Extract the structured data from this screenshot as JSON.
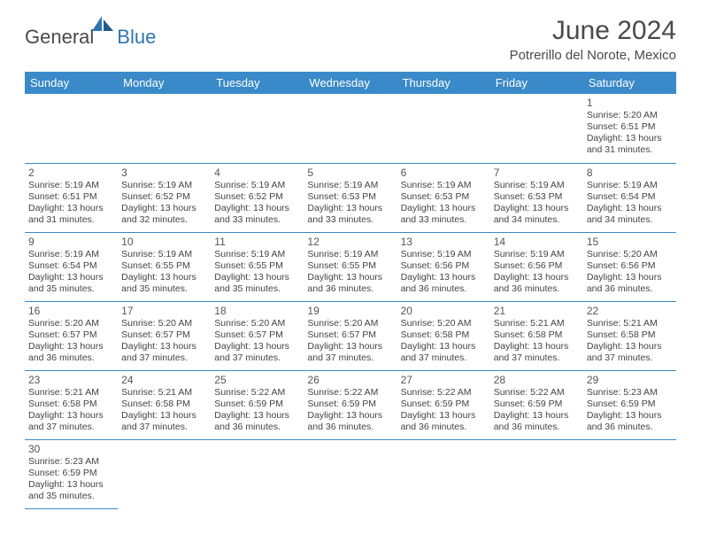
{
  "logo": {
    "general": "General",
    "blue": "Blue"
  },
  "title": "June 2024",
  "location": "Potrerillo del Norote, Mexico",
  "colors": {
    "header_bg": "#3a8ac9",
    "header_text": "#ffffff",
    "accent": "#2e75b6",
    "text": "#444444",
    "border": "#3a8ac9"
  },
  "day_headers": [
    "Sunday",
    "Monday",
    "Tuesday",
    "Wednesday",
    "Thursday",
    "Friday",
    "Saturday"
  ],
  "weeks": [
    [
      null,
      null,
      null,
      null,
      null,
      null,
      {
        "n": "1",
        "sr": "5:20 AM",
        "ss": "6:51 PM",
        "dl": "13 hours and 31 minutes."
      }
    ],
    [
      {
        "n": "2",
        "sr": "5:19 AM",
        "ss": "6:51 PM",
        "dl": "13 hours and 31 minutes."
      },
      {
        "n": "3",
        "sr": "5:19 AM",
        "ss": "6:52 PM",
        "dl": "13 hours and 32 minutes."
      },
      {
        "n": "4",
        "sr": "5:19 AM",
        "ss": "6:52 PM",
        "dl": "13 hours and 33 minutes."
      },
      {
        "n": "5",
        "sr": "5:19 AM",
        "ss": "6:53 PM",
        "dl": "13 hours and 33 minutes."
      },
      {
        "n": "6",
        "sr": "5:19 AM",
        "ss": "6:53 PM",
        "dl": "13 hours and 33 minutes."
      },
      {
        "n": "7",
        "sr": "5:19 AM",
        "ss": "6:53 PM",
        "dl": "13 hours and 34 minutes."
      },
      {
        "n": "8",
        "sr": "5:19 AM",
        "ss": "6:54 PM",
        "dl": "13 hours and 34 minutes."
      }
    ],
    [
      {
        "n": "9",
        "sr": "5:19 AM",
        "ss": "6:54 PM",
        "dl": "13 hours and 35 minutes."
      },
      {
        "n": "10",
        "sr": "5:19 AM",
        "ss": "6:55 PM",
        "dl": "13 hours and 35 minutes."
      },
      {
        "n": "11",
        "sr": "5:19 AM",
        "ss": "6:55 PM",
        "dl": "13 hours and 35 minutes."
      },
      {
        "n": "12",
        "sr": "5:19 AM",
        "ss": "6:55 PM",
        "dl": "13 hours and 36 minutes."
      },
      {
        "n": "13",
        "sr": "5:19 AM",
        "ss": "6:56 PM",
        "dl": "13 hours and 36 minutes."
      },
      {
        "n": "14",
        "sr": "5:19 AM",
        "ss": "6:56 PM",
        "dl": "13 hours and 36 minutes."
      },
      {
        "n": "15",
        "sr": "5:20 AM",
        "ss": "6:56 PM",
        "dl": "13 hours and 36 minutes."
      }
    ],
    [
      {
        "n": "16",
        "sr": "5:20 AM",
        "ss": "6:57 PM",
        "dl": "13 hours and 36 minutes."
      },
      {
        "n": "17",
        "sr": "5:20 AM",
        "ss": "6:57 PM",
        "dl": "13 hours and 37 minutes."
      },
      {
        "n": "18",
        "sr": "5:20 AM",
        "ss": "6:57 PM",
        "dl": "13 hours and 37 minutes."
      },
      {
        "n": "19",
        "sr": "5:20 AM",
        "ss": "6:57 PM",
        "dl": "13 hours and 37 minutes."
      },
      {
        "n": "20",
        "sr": "5:20 AM",
        "ss": "6:58 PM",
        "dl": "13 hours and 37 minutes."
      },
      {
        "n": "21",
        "sr": "5:21 AM",
        "ss": "6:58 PM",
        "dl": "13 hours and 37 minutes."
      },
      {
        "n": "22",
        "sr": "5:21 AM",
        "ss": "6:58 PM",
        "dl": "13 hours and 37 minutes."
      }
    ],
    [
      {
        "n": "23",
        "sr": "5:21 AM",
        "ss": "6:58 PM",
        "dl": "13 hours and 37 minutes."
      },
      {
        "n": "24",
        "sr": "5:21 AM",
        "ss": "6:58 PM",
        "dl": "13 hours and 37 minutes."
      },
      {
        "n": "25",
        "sr": "5:22 AM",
        "ss": "6:59 PM",
        "dl": "13 hours and 36 minutes."
      },
      {
        "n": "26",
        "sr": "5:22 AM",
        "ss": "6:59 PM",
        "dl": "13 hours and 36 minutes."
      },
      {
        "n": "27",
        "sr": "5:22 AM",
        "ss": "6:59 PM",
        "dl": "13 hours and 36 minutes."
      },
      {
        "n": "28",
        "sr": "5:22 AM",
        "ss": "6:59 PM",
        "dl": "13 hours and 36 minutes."
      },
      {
        "n": "29",
        "sr": "5:23 AM",
        "ss": "6:59 PM",
        "dl": "13 hours and 36 minutes."
      }
    ],
    [
      {
        "n": "30",
        "sr": "5:23 AM",
        "ss": "6:59 PM",
        "dl": "13 hours and 35 minutes."
      },
      null,
      null,
      null,
      null,
      null,
      null
    ]
  ],
  "labels": {
    "sunrise": "Sunrise: ",
    "sunset": "Sunset: ",
    "daylight": "Daylight: "
  }
}
